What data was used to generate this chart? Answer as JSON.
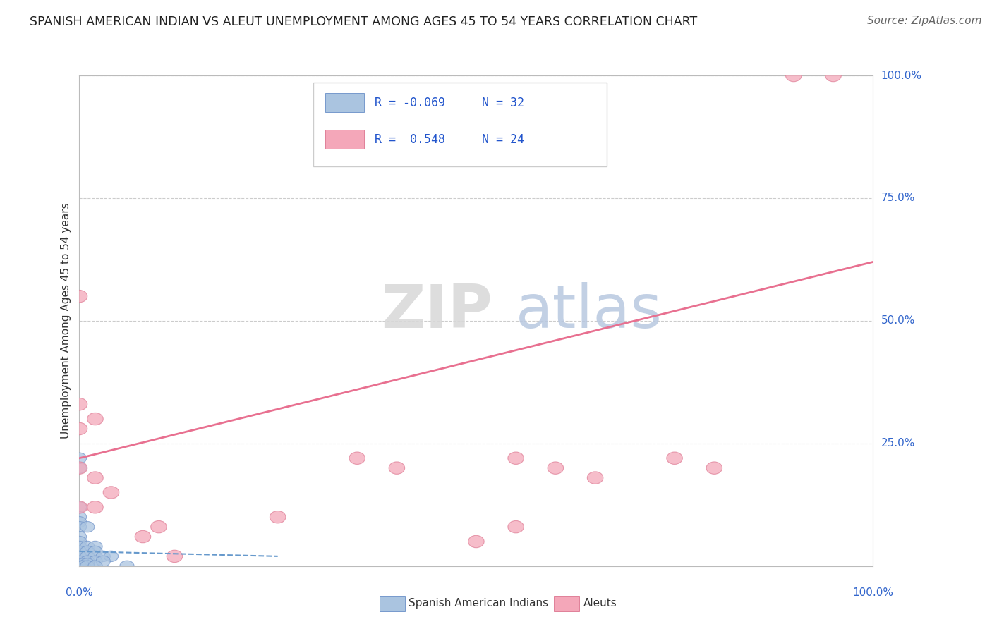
{
  "title": "SPANISH AMERICAN INDIAN VS ALEUT UNEMPLOYMENT AMONG AGES 45 TO 54 YEARS CORRELATION CHART",
  "source": "Source: ZipAtlas.com",
  "ylabel": "Unemployment Among Ages 45 to 54 years",
  "y_tick_labels": [
    "100.0%",
    "75.0%",
    "50.0%",
    "25.0%"
  ],
  "y_tick_positions": [
    1.0,
    0.75,
    0.5,
    0.25
  ],
  "legend_entries": [
    {
      "label_r": "R = -0.069",
      "label_n": "N = 32",
      "color": "#aac4e0"
    },
    {
      "label_r": "R =  0.548",
      "label_n": "N = 24",
      "color": "#f4a7b9"
    }
  ],
  "legend_bottom": [
    "Spanish American Indians",
    "Aleuts"
  ],
  "blue_scatter": [
    [
      0.0,
      0.2
    ],
    [
      0.0,
      0.22
    ],
    [
      0.0,
      0.12
    ],
    [
      0.0,
      0.1
    ],
    [
      0.0,
      0.09
    ],
    [
      0.0,
      0.08
    ],
    [
      0.01,
      0.08
    ],
    [
      0.0,
      0.06
    ],
    [
      0.0,
      0.05
    ],
    [
      0.0,
      0.04
    ],
    [
      0.01,
      0.04
    ],
    [
      0.02,
      0.04
    ],
    [
      0.0,
      0.03
    ],
    [
      0.01,
      0.03
    ],
    [
      0.02,
      0.03
    ],
    [
      0.0,
      0.02
    ],
    [
      0.01,
      0.02
    ],
    [
      0.02,
      0.02
    ],
    [
      0.03,
      0.02
    ],
    [
      0.04,
      0.02
    ],
    [
      0.0,
      0.01
    ],
    [
      0.01,
      0.01
    ],
    [
      0.02,
      0.01
    ],
    [
      0.03,
      0.01
    ],
    [
      0.0,
      0.005
    ],
    [
      0.005,
      0.005
    ],
    [
      0.01,
      0.005
    ],
    [
      0.0,
      0.0
    ],
    [
      0.005,
      0.0
    ],
    [
      0.01,
      0.0
    ],
    [
      0.02,
      0.0
    ],
    [
      0.06,
      0.0
    ]
  ],
  "pink_scatter": [
    [
      0.0,
      0.55
    ],
    [
      0.0,
      0.33
    ],
    [
      0.02,
      0.3
    ],
    [
      0.0,
      0.28
    ],
    [
      0.0,
      0.2
    ],
    [
      0.02,
      0.18
    ],
    [
      0.04,
      0.15
    ],
    [
      0.0,
      0.12
    ],
    [
      0.02,
      0.12
    ],
    [
      0.35,
      0.22
    ],
    [
      0.4,
      0.2
    ],
    [
      0.55,
      0.22
    ],
    [
      0.6,
      0.2
    ],
    [
      0.65,
      0.18
    ],
    [
      0.75,
      0.22
    ],
    [
      0.8,
      0.2
    ],
    [
      0.5,
      0.05
    ],
    [
      0.55,
      0.08
    ],
    [
      0.9,
      1.0
    ],
    [
      0.95,
      1.0
    ],
    [
      0.1,
      0.08
    ],
    [
      0.25,
      0.1
    ],
    [
      0.08,
      0.06
    ],
    [
      0.12,
      0.02
    ]
  ],
  "blue_line_x": [
    0.0,
    0.25
  ],
  "blue_line_y": [
    0.03,
    0.02
  ],
  "pink_line_x": [
    0.0,
    1.0
  ],
  "pink_line_y": [
    0.22,
    0.62
  ],
  "blue_line_color": "#6699cc",
  "pink_line_color": "#e87090",
  "watermark_zip": "ZIP",
  "watermark_atlas": "atlas",
  "background_color": "#ffffff",
  "grid_color": "#cccccc",
  "xlim": [
    0.0,
    1.0
  ],
  "ylim": [
    0.0,
    1.0
  ]
}
